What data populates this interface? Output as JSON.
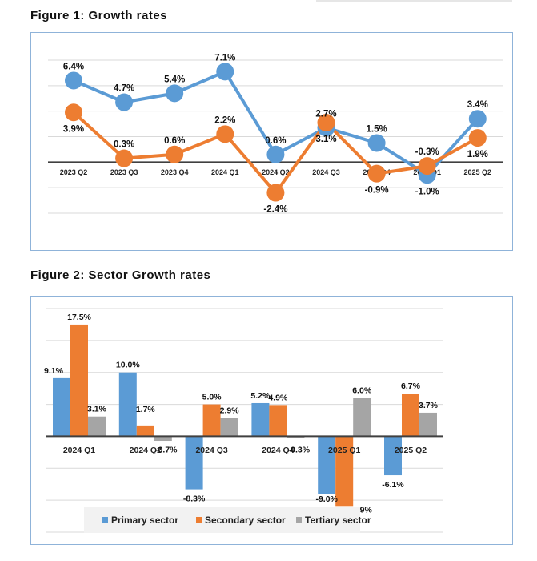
{
  "figure1": {
    "title": "Figure 1: Growth rates"
  },
  "figure2": {
    "title": "Figure 2: Sector Growth rates"
  },
  "chart_data": [
    {
      "type": "line",
      "title": "Figure 1: Growth rates",
      "categories": [
        "2023 Q2",
        "2023 Q3",
        "2023 Q4",
        "2024 Q1",
        "2024 Q2",
        "2024 Q3",
        "2024 Q4",
        "2025 Q1",
        "2025 Q2"
      ],
      "series": [
        {
          "color": "#5b9bd5",
          "values": [
            6.4,
            4.7,
            5.4,
            7.1,
            0.6,
            2.7,
            1.5,
            -1.0,
            3.4
          ],
          "labels": [
            "6.4%",
            "4.7%",
            "5.4%",
            "7.1%",
            "0.6%",
            "2.7%",
            "1.5%",
            "-1.0%",
            "3.4%"
          ]
        },
        {
          "color": "#ed7d31",
          "values": [
            3.9,
            0.3,
            0.6,
            2.2,
            -2.4,
            3.1,
            -0.9,
            -0.3,
            1.9
          ],
          "labels": [
            "3.9%",
            "0.3%",
            "0.6%",
            "2.2%",
            "-2.4%",
            "3.1%",
            "-0.9%",
            "-0.3%",
            "1.9%"
          ]
        }
      ],
      "ylim": [
        -4,
        8
      ],
      "grid": true,
      "ytick_step": 2
    },
    {
      "type": "bar",
      "title": "Figure 2: Sector Growth rates",
      "categories": [
        "2024 Q1",
        "2024 Q2",
        "2024 Q3",
        "2024 Q4",
        "2025 Q1",
        "2025 Q2"
      ],
      "series": [
        {
          "name": "Primary sector",
          "color": "#5b9bd5",
          "values": [
            9.1,
            10.0,
            -8.3,
            5.2,
            -9.0,
            -6.1
          ],
          "labels": [
            "9.1%",
            "10.0%",
            "-8.3%",
            "5.2%",
            "-9.0%",
            "-6.1%"
          ]
        },
        {
          "name": "Secondary sector",
          "color": "#ed7d31",
          "values": [
            17.5,
            1.7,
            5.0,
            4.9,
            -10.9,
            6.7
          ],
          "labels": [
            "17.5%",
            "1.7%",
            "5.0%",
            "4.9%",
            "-10.9%",
            "6.7%"
          ]
        },
        {
          "name": "Tertiary sector",
          "color": "#a5a5a5",
          "values": [
            3.1,
            -0.7,
            2.9,
            -0.3,
            6.0,
            3.7
          ],
          "labels": [
            "3.1%",
            "-0.7%",
            "2.9%",
            "-0.3%",
            "6.0%",
            "3.7%"
          ]
        }
      ],
      "ylim": [
        -15,
        20
      ],
      "grid": true,
      "ytick_step": 5,
      "legend": "bottom"
    }
  ]
}
